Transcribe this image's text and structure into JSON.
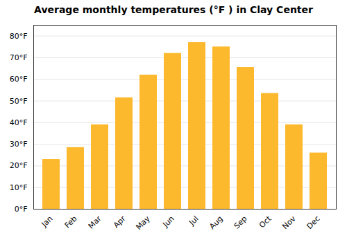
{
  "chart_data": {
    "type": "bar",
    "title": "Average monthly temperatures (°F ) in Clay Center",
    "categories": [
      "Jan",
      "Feb",
      "Mar",
      "Apr",
      "May",
      "Jun",
      "Jul",
      "Aug",
      "Sep",
      "Oct",
      "Nov",
      "Dec"
    ],
    "values": [
      23,
      28.5,
      39,
      51.5,
      62,
      72,
      77,
      75,
      65.5,
      53.5,
      39,
      26
    ],
    "color": "#FDB92E",
    "ylim": [
      0,
      85
    ],
    "yticks": [
      {
        "value": 0,
        "label": "0°F"
      },
      {
        "value": 10,
        "label": "10°F"
      },
      {
        "value": 20,
        "label": "20°F"
      },
      {
        "value": 30,
        "label": "30°F"
      },
      {
        "value": 40,
        "label": "40°F"
      },
      {
        "value": 50,
        "label": "50°F"
      },
      {
        "value": 60,
        "label": "60°F"
      },
      {
        "value": 70,
        "label": "70°F"
      },
      {
        "value": 80,
        "label": "80°F"
      }
    ],
    "grid": true
  }
}
